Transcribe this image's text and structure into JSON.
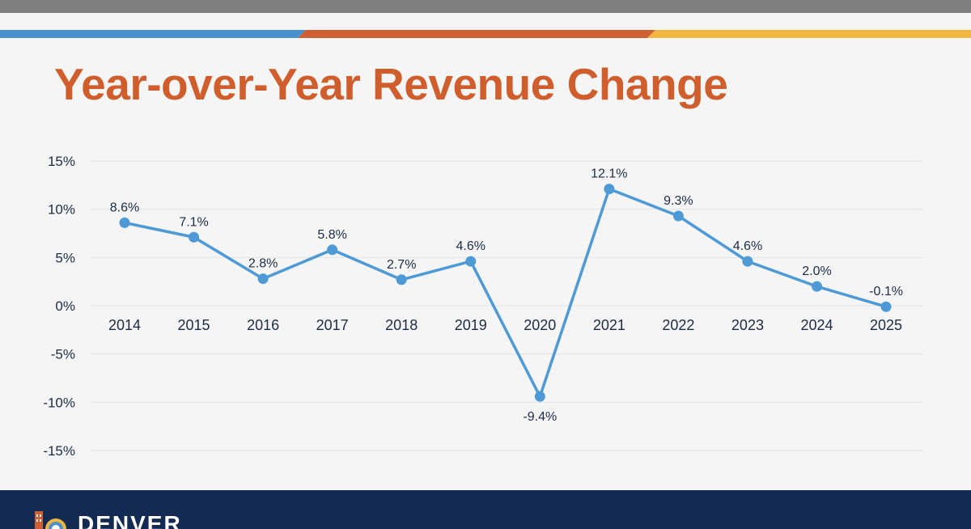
{
  "slide": {
    "title": "Year-over-Year Revenue Change",
    "footer_brand": "DENVER"
  },
  "colors": {
    "top_bar": "#7f7f7f",
    "stripe_blue": "#4a90cf",
    "stripe_orange": "#cf5f33",
    "stripe_yellow": "#f1b63f",
    "title": "#d05e2d",
    "line": "#4d9ad7",
    "footer_bg": "#132b52",
    "text": "#1d2b45",
    "grid": "#e3e3e3"
  },
  "chart_data": {
    "type": "line",
    "title": "",
    "xlabel": "",
    "ylabel": "",
    "x": [
      "2014",
      "2015",
      "2016",
      "2017",
      "2018",
      "2019",
      "2020",
      "2021",
      "2022",
      "2023",
      "2024",
      "2025"
    ],
    "series": [
      {
        "values": [
          8.6,
          7.1,
          2.8,
          5.8,
          2.7,
          4.6,
          -9.4,
          12.1,
          9.3,
          4.6,
          2.0,
          -0.1
        ],
        "data_labels": [
          "8.6%",
          "7.1%",
          "2.8%",
          "5.8%",
          "2.7%",
          "4.6%",
          "-9.4%",
          "12.1%",
          "9.3%",
          "4.6%",
          "2.0%",
          "-0.1%"
        ]
      }
    ],
    "ylim": [
      -15,
      15
    ],
    "yticks": [
      15,
      10,
      5,
      0,
      -5,
      -10,
      -15
    ],
    "ytick_labels": [
      "15%",
      "10%",
      "5%",
      "0%",
      "-5%",
      "-10%",
      "-15%"
    ],
    "grid": true,
    "legend": "none"
  }
}
